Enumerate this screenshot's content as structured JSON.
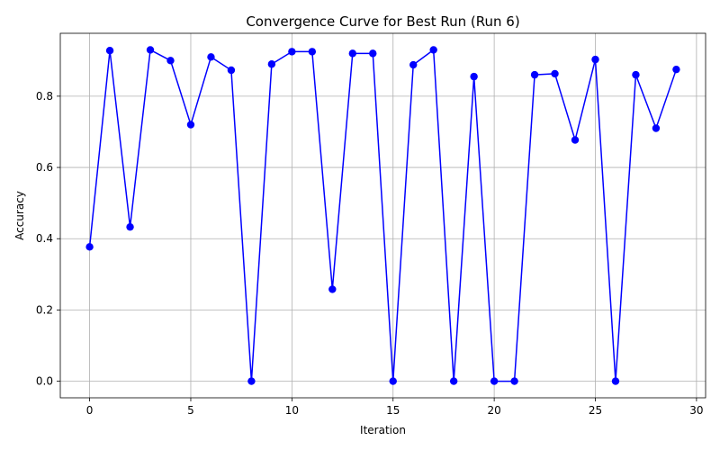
{
  "chart_data": {
    "type": "line",
    "title": "Convergence Curve for Best Run (Run 6)",
    "xlabel": "Iteration",
    "ylabel": "Accuracy",
    "xlim": [
      -1.45,
      30.45
    ],
    "ylim": [
      -0.0465,
      0.9765
    ],
    "xticks": [
      0,
      5,
      10,
      15,
      20,
      25,
      30
    ],
    "yticks": [
      0.0,
      0.2,
      0.4,
      0.6,
      0.8
    ],
    "ytick_labels": [
      "0.0",
      "0.2",
      "0.4",
      "0.6",
      "0.8"
    ],
    "grid": true,
    "line_color": "#0000ff",
    "marker": "circle",
    "series": [
      {
        "x": [
          0,
          1,
          2,
          3,
          4,
          5,
          6,
          7,
          8,
          9,
          10,
          11,
          12,
          13,
          14,
          15,
          16,
          17,
          18,
          19,
          20,
          21,
          22,
          23,
          24,
          25,
          26,
          27,
          28,
          29
        ],
        "values": [
          0.377,
          0.928,
          0.433,
          0.93,
          0.9,
          0.72,
          0.91,
          0.873,
          0.0,
          0.89,
          0.925,
          0.925,
          0.258,
          0.92,
          0.92,
          0.0,
          0.888,
          0.93,
          0.0,
          0.855,
          0.0,
          0.0,
          0.86,
          0.863,
          0.677,
          0.903,
          0.0,
          0.86,
          0.71,
          0.875
        ]
      }
    ]
  }
}
